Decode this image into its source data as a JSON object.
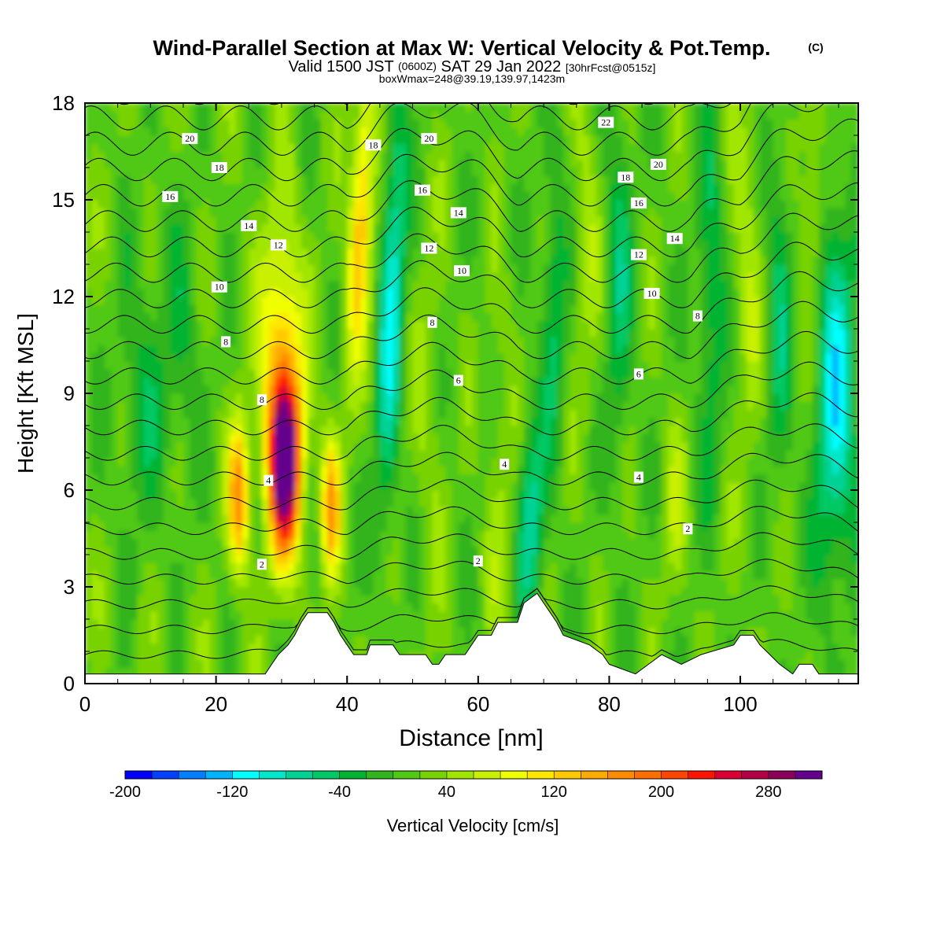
{
  "chart_data": {
    "type": "heatmap",
    "title": "Wind-Parallel Section at Max W: Vertical Velocity & Pot.Temp.",
    "title_mark": "(C)",
    "subtitle_parts": [
      "Valid 1500 JST",
      "(0600Z)",
      "SAT 29 Jan 2022",
      "[30hrFcst@0515z]"
    ],
    "subtitle2": "boxWmax=248@39.19,139.97,1423m",
    "xlabel": "Distance [nm]",
    "ylabel": "Height [Kft MSL]",
    "xlim": [
      0,
      118
    ],
    "ylim": [
      0,
      18
    ],
    "x_ticks": [
      "0",
      "20",
      "40",
      "60",
      "80",
      "100"
    ],
    "y_ticks": [
      "0",
      "3",
      "6",
      "9",
      "12",
      "15",
      "18"
    ],
    "colorbar": {
      "label": "Vertical Velocity [cm/s]",
      "min": -200,
      "max": 320,
      "step": 20,
      "tick_labels": [
        "-200",
        "-120",
        "-40",
        "40",
        "120",
        "200",
        "280"
      ],
      "colors": [
        "#0000ff",
        "#0040ff",
        "#0080ff",
        "#00b4ff",
        "#00ffff",
        "#00e6c8",
        "#00d296",
        "#00c864",
        "#00b432",
        "#32b41e",
        "#50c814",
        "#78d200",
        "#a0e600",
        "#c8f000",
        "#f0ff00",
        "#ffe600",
        "#ffc800",
        "#ffaa00",
        "#ff8c00",
        "#ff6e00",
        "#ff4600",
        "#ff1400",
        "#dc0032",
        "#b40046",
        "#8c005a",
        "#64008c"
      ]
    },
    "w_features": [
      {
        "x": 30.5,
        "z": 6.8,
        "w": 300
      },
      {
        "x": 23.5,
        "z": 5.8,
        "w": 150
      },
      {
        "x": 37.5,
        "z": 5.5,
        "w": 140
      },
      {
        "x": 42.0,
        "z": 14.0,
        "w": 130
      },
      {
        "x": 46.5,
        "z": 12.0,
        "w": -110
      },
      {
        "x": 68.0,
        "z": 5.0,
        "w": -90
      },
      {
        "x": 114.0,
        "z": 8.0,
        "w": -120
      },
      {
        "x": 76.0,
        "z": 14.0,
        "w": 40
      },
      {
        "x": 101.0,
        "z": 13.0,
        "w": 40
      },
      {
        "x": 111.0,
        "z": 15.0,
        "w": 50
      },
      {
        "x": 9.0,
        "z": 9.0,
        "w": -40
      },
      {
        "x": 90.0,
        "z": 5.5,
        "w": 40
      }
    ],
    "terrain": [
      {
        "x": 0,
        "z": 0.3
      },
      {
        "x": 5,
        "z": 0.3
      },
      {
        "x": 10,
        "z": 0.3
      },
      {
        "x": 15,
        "z": 0.3
      },
      {
        "x": 20,
        "z": 0.3
      },
      {
        "x": 25,
        "z": 0.3
      },
      {
        "x": 27.5,
        "z": 0.3
      },
      {
        "x": 28.5,
        "z": 0.6
      },
      {
        "x": 29.5,
        "z": 0.9
      },
      {
        "x": 31,
        "z": 1.2
      },
      {
        "x": 32,
        "z": 1.5
      },
      {
        "x": 33,
        "z": 1.9
      },
      {
        "x": 34,
        "z": 2.2
      },
      {
        "x": 37,
        "z": 2.2
      },
      {
        "x": 38,
        "z": 1.9
      },
      {
        "x": 39,
        "z": 1.5
      },
      {
        "x": 40,
        "z": 1.2
      },
      {
        "x": 41,
        "z": 0.9
      },
      {
        "x": 43,
        "z": 0.9
      },
      {
        "x": 43.5,
        "z": 1.2
      },
      {
        "x": 47,
        "z": 1.2
      },
      {
        "x": 48,
        "z": 0.9
      },
      {
        "x": 52,
        "z": 0.9
      },
      {
        "x": 53,
        "z": 0.6
      },
      {
        "x": 54,
        "z": 0.6
      },
      {
        "x": 55,
        "z": 0.9
      },
      {
        "x": 58,
        "z": 0.9
      },
      {
        "x": 59,
        "z": 1.2
      },
      {
        "x": 60,
        "z": 1.5
      },
      {
        "x": 62,
        "z": 1.5
      },
      {
        "x": 63,
        "z": 1.9
      },
      {
        "x": 66,
        "z": 1.9
      },
      {
        "x": 67,
        "z": 2.5
      },
      {
        "x": 69,
        "z": 2.8
      },
      {
        "x": 70,
        "z": 2.5
      },
      {
        "x": 71,
        "z": 2.2
      },
      {
        "x": 72,
        "z": 1.9
      },
      {
        "x": 73,
        "z": 1.5
      },
      {
        "x": 77,
        "z": 1.2
      },
      {
        "x": 79,
        "z": 0.9
      },
      {
        "x": 80,
        "z": 0.6
      },
      {
        "x": 84,
        "z": 0.3
      },
      {
        "x": 86,
        "z": 0.6
      },
      {
        "x": 88,
        "z": 0.9
      },
      {
        "x": 91,
        "z": 0.6
      },
      {
        "x": 94,
        "z": 0.9
      },
      {
        "x": 99,
        "z": 1.2
      },
      {
        "x": 100,
        "z": 1.5
      },
      {
        "x": 102,
        "z": 1.5
      },
      {
        "x": 103,
        "z": 1.2
      },
      {
        "x": 104,
        "z": 1.0
      },
      {
        "x": 106,
        "z": 0.6
      },
      {
        "x": 108,
        "z": 0.3
      },
      {
        "x": 109,
        "z": 0.6
      },
      {
        "x": 111,
        "z": 0.6
      },
      {
        "x": 112,
        "z": 0.3
      },
      {
        "x": 118,
        "z": 0.3
      }
    ],
    "pot_temp_levels": [
      0,
      1,
      2,
      3,
      4,
      5,
      6,
      7,
      8,
      9,
      10,
      11,
      12,
      13,
      14,
      15,
      16,
      17,
      18,
      19,
      20,
      21,
      22
    ],
    "contour_labels": [
      {
        "text": "20",
        "x": 16.0,
        "z": 16.9
      },
      {
        "text": "18",
        "x": 20.5,
        "z": 16.0
      },
      {
        "text": "16",
        "x": 13.0,
        "z": 15.1
      },
      {
        "text": "14",
        "x": 25.0,
        "z": 14.2
      },
      {
        "text": "12",
        "x": 29.5,
        "z": 13.6
      },
      {
        "text": "10",
        "x": 20.5,
        "z": 12.3
      },
      {
        "text": "8",
        "x": 21.5,
        "z": 10.6
      },
      {
        "text": "8",
        "x": 27.0,
        "z": 8.8
      },
      {
        "text": "4",
        "x": 28.0,
        "z": 6.3
      },
      {
        "text": "2",
        "x": 27.0,
        "z": 3.7
      },
      {
        "text": "18",
        "x": 44.0,
        "z": 16.7
      },
      {
        "text": "20",
        "x": 52.5,
        "z": 16.9
      },
      {
        "text": "16",
        "x": 51.5,
        "z": 15.3
      },
      {
        "text": "14",
        "x": 57.0,
        "z": 14.6
      },
      {
        "text": "12",
        "x": 52.5,
        "z": 13.5
      },
      {
        "text": "10",
        "x": 57.5,
        "z": 12.8
      },
      {
        "text": "8",
        "x": 53.0,
        "z": 11.2
      },
      {
        "text": "6",
        "x": 57.0,
        "z": 9.4
      },
      {
        "text": "4",
        "x": 64.0,
        "z": 6.8
      },
      {
        "text": "2",
        "x": 60.0,
        "z": 3.8
      },
      {
        "text": "22",
        "x": 79.5,
        "z": 17.4
      },
      {
        "text": "20",
        "x": 87.5,
        "z": 16.1
      },
      {
        "text": "18",
        "x": 82.5,
        "z": 15.7
      },
      {
        "text": "16",
        "x": 84.5,
        "z": 14.9
      },
      {
        "text": "14",
        "x": 90.0,
        "z": 13.8
      },
      {
        "text": "12",
        "x": 84.5,
        "z": 13.3
      },
      {
        "text": "10",
        "x": 86.5,
        "z": 12.1
      },
      {
        "text": "8",
        "x": 93.5,
        "z": 11.4
      },
      {
        "text": "6",
        "x": 84.5,
        "z": 9.6
      },
      {
        "text": "4",
        "x": 84.5,
        "z": 6.4
      },
      {
        "text": "2",
        "x": 92.0,
        "z": 4.8
      }
    ]
  }
}
